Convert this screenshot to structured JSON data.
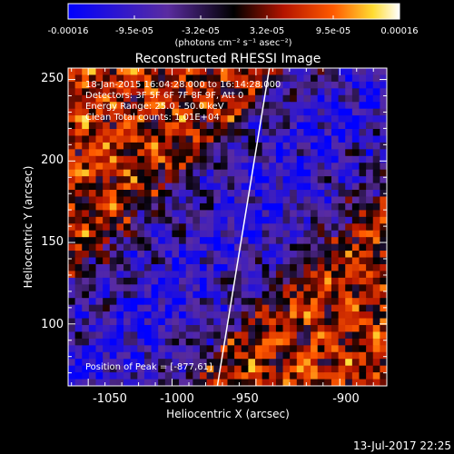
{
  "colorbar": {
    "tick_labels": [
      "-0.00016",
      "-9.5e-05",
      "-3.2e-05",
      "3.2e-05",
      "9.5e-05",
      "0.00016"
    ],
    "units": "(photons cm⁻² s⁻¹ asec⁻²)",
    "colors": [
      "#0000ff",
      "#5a2ca0",
      "#000000",
      "#b41400",
      "#ff5a00",
      "#ffdc32",
      "#ffffff"
    ]
  },
  "chart_data": {
    "type": "heatmap",
    "title": "Reconstructed RHESSI Image",
    "xlabel": "Heliocentric X (arcsec)",
    "ylabel": "Heliocentric Y (arcsec)",
    "xlim": [
      -1062,
      -872
    ],
    "ylim": [
      62,
      257
    ],
    "x_ticks": [
      -1050,
      -1000,
      -950,
      -900
    ],
    "y_ticks": [
      100,
      150,
      200,
      250
    ],
    "info_lines": [
      "18-Jan-2015 16:04:28.000 to 16:14:28.000",
      "Detectors: 3F 5F 6F 7F 8F 9F, Att 0",
      "Energy Range: 25.0 - 50.0 keV",
      "Clean     Total counts: 1.01E+04"
    ],
    "peak_label": "Position of Peak = [-877,61]",
    "limb_line": [
      [
        -973,
        62
      ],
      [
        -942,
        257
      ]
    ],
    "image_grid": {
      "nx": 46,
      "ny": 47,
      "value_range": [
        -0.00016,
        0.00016
      ]
    }
  },
  "timestamp": "13-Jul-2017 22:25"
}
